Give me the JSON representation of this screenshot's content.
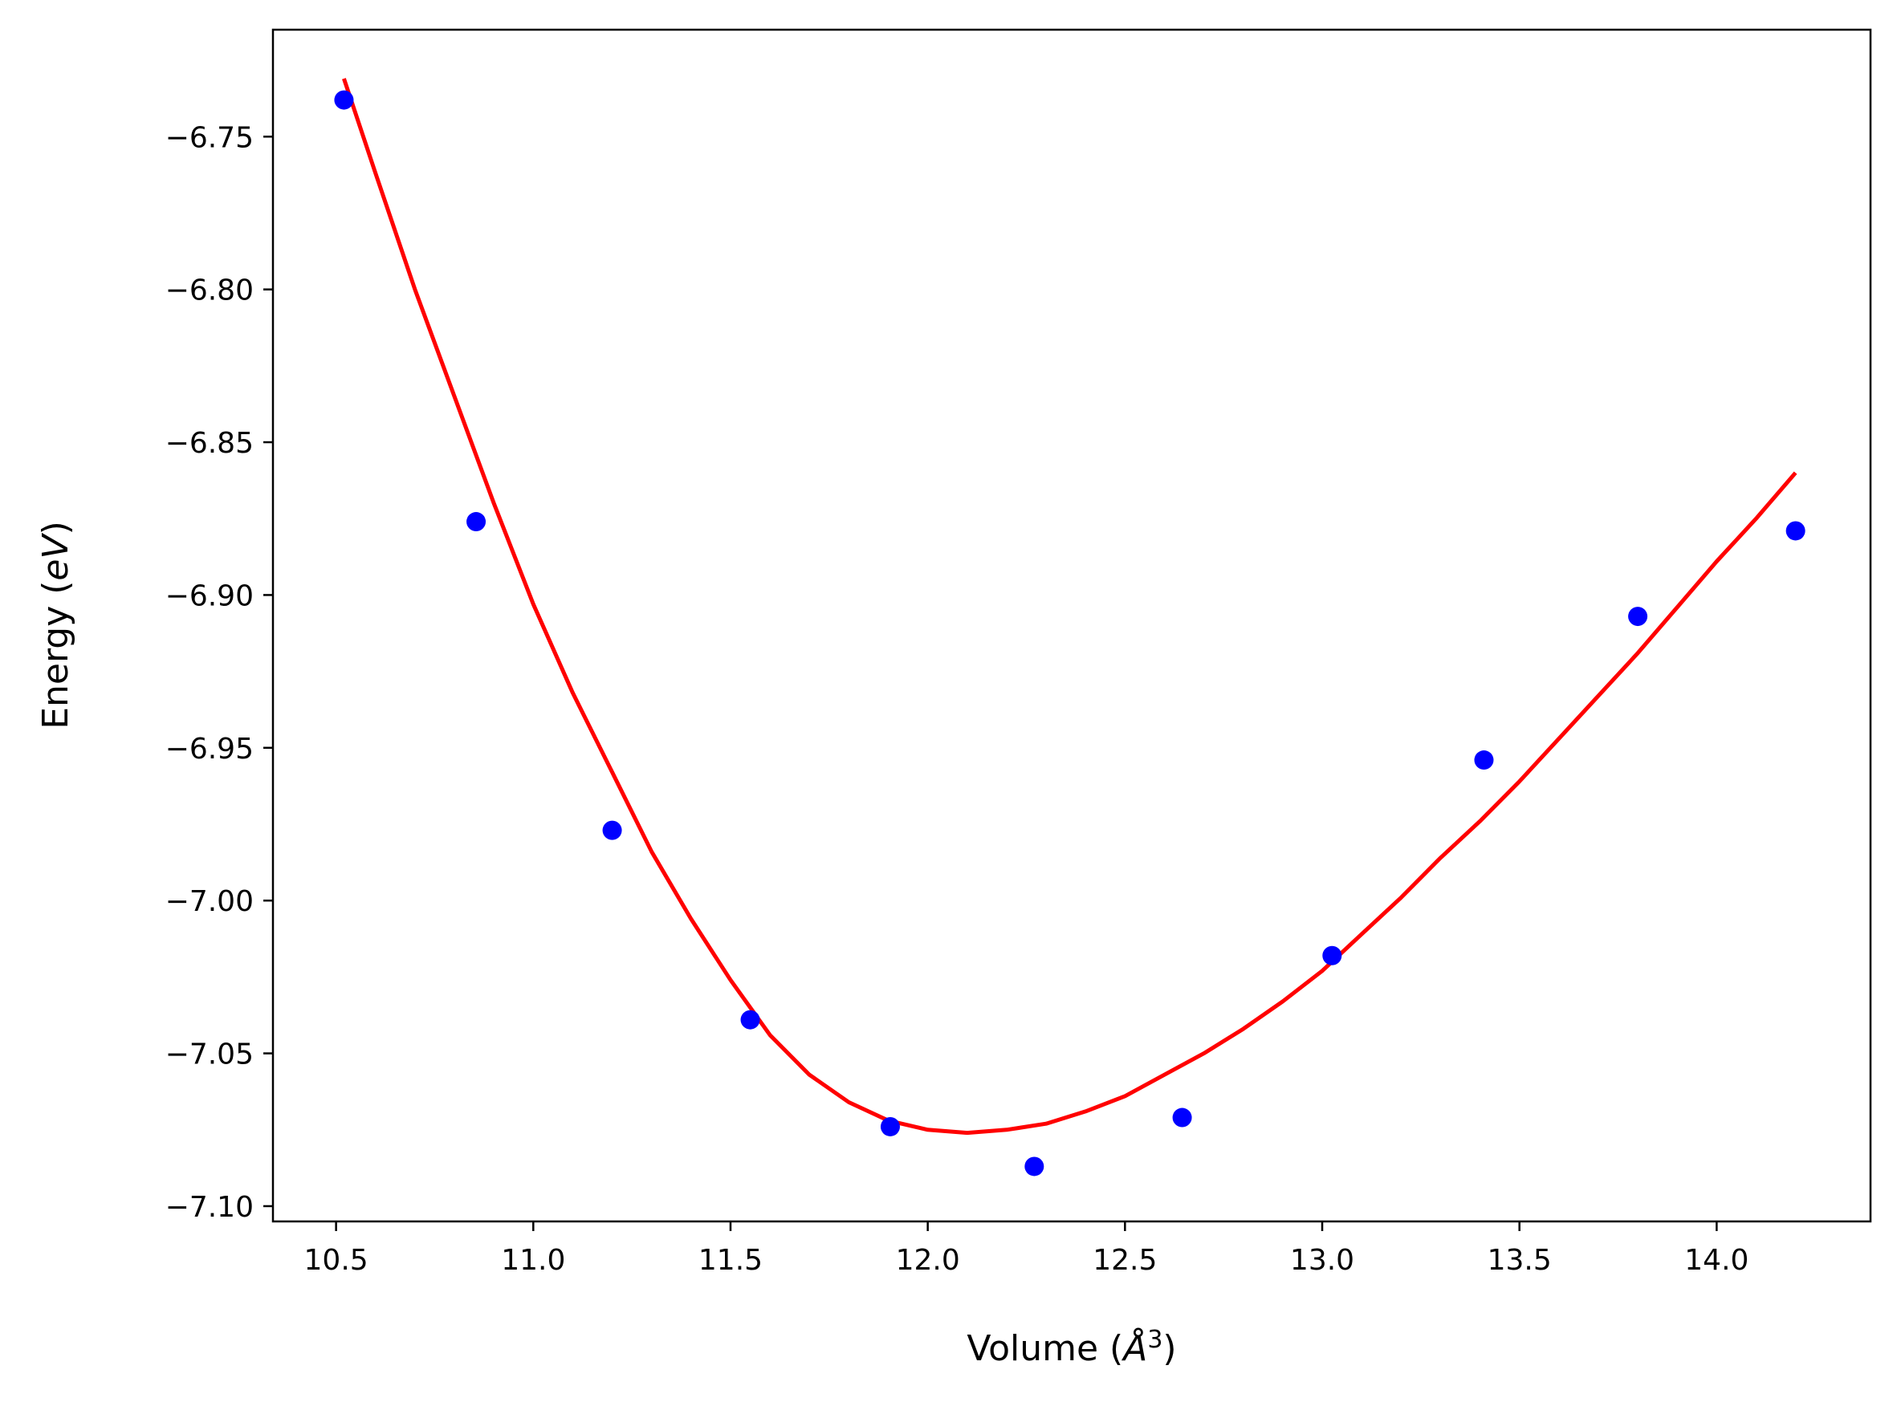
{
  "chart_data": {
    "type": "scatter",
    "title": "",
    "xlabel": "Volume (",
    "xlabel_symbol": "Å",
    "xlabel_exponent": "3",
    "xlabel_close": ")",
    "ylabel": "Energy (",
    "ylabel_unit": "eV",
    "ylabel_close": ")",
    "xlim": [
      10.34,
      14.39
    ],
    "ylim": [
      -7.105,
      -6.715
    ],
    "xticks": [
      10.5,
      11.0,
      11.5,
      12.0,
      12.5,
      13.0,
      13.5,
      14.0
    ],
    "xtick_labels": [
      "10.5",
      "11.0",
      "11.5",
      "12.0",
      "12.5",
      "13.0",
      "13.5",
      "14.0"
    ],
    "yticks": [
      -6.75,
      -6.8,
      -6.85,
      -6.9,
      -6.95,
      -7.0,
      -7.05,
      -7.1
    ],
    "ytick_labels": [
      "−6.75",
      "−6.80",
      "−6.85",
      "−6.90",
      "−6.95",
      "−7.00",
      "−7.05",
      "−7.10"
    ],
    "grid": false,
    "series": [
      {
        "kind": "points",
        "color": "#0000ff",
        "x": [
          10.52,
          10.855,
          11.2,
          11.55,
          11.905,
          12.27,
          12.645,
          13.025,
          13.41,
          13.8,
          14.2
        ],
        "y": [
          -6.738,
          -6.876,
          -6.977,
          -7.039,
          -7.074,
          -7.087,
          -7.071,
          -7.018,
          -6.954,
          -6.907,
          -6.879
        ]
      },
      {
        "kind": "fit-line",
        "color": "#ff0000",
        "x": [
          10.52,
          10.6,
          10.7,
          10.8,
          10.9,
          11.0,
          11.1,
          11.2,
          11.3,
          11.4,
          11.5,
          11.6,
          11.7,
          11.8,
          11.9,
          12.0,
          12.1,
          12.2,
          12.3,
          12.4,
          12.5,
          12.6,
          12.7,
          12.8,
          12.9,
          13.0,
          13.1,
          13.2,
          13.3,
          13.4,
          13.5,
          13.6,
          13.7,
          13.8,
          13.9,
          14.0,
          14.1,
          14.2
        ],
        "y": [
          -6.731,
          -6.762,
          -6.8,
          -6.835,
          -6.87,
          -6.903,
          -6.932,
          -6.958,
          -6.984,
          -7.006,
          -7.026,
          -7.044,
          -7.057,
          -7.066,
          -7.072,
          -7.075,
          -7.076,
          -7.075,
          -7.073,
          -7.069,
          -7.064,
          -7.057,
          -7.05,
          -7.042,
          -7.033,
          -7.023,
          -7.011,
          -6.999,
          -6.986,
          -6.974,
          -6.961,
          -6.947,
          -6.933,
          -6.919,
          -6.904,
          -6.889,
          -6.875,
          -6.86
        ]
      }
    ]
  }
}
